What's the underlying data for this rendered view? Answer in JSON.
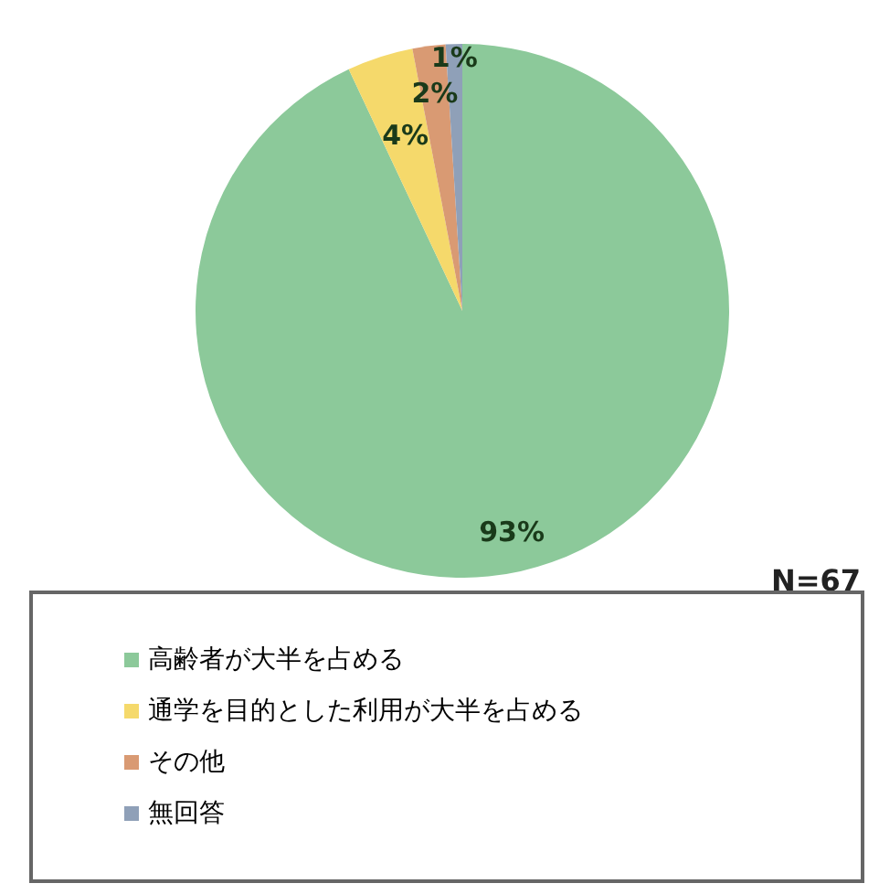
{
  "chart_data": {
    "type": "pie",
    "categories": [
      "高齢者が大半を占める",
      "通学を目的とした利用が大半を占める",
      "その他",
      "無回答"
    ],
    "values": [
      93,
      4,
      2,
      1
    ],
    "colors": [
      "#8cc99a",
      "#f5d96b",
      "#d99a73",
      "#8fa0b8"
    ],
    "value_labels": [
      "93%",
      "4%",
      "2%",
      "1%"
    ],
    "legend": "bottom",
    "annotations": [
      "N=67"
    ]
  }
}
